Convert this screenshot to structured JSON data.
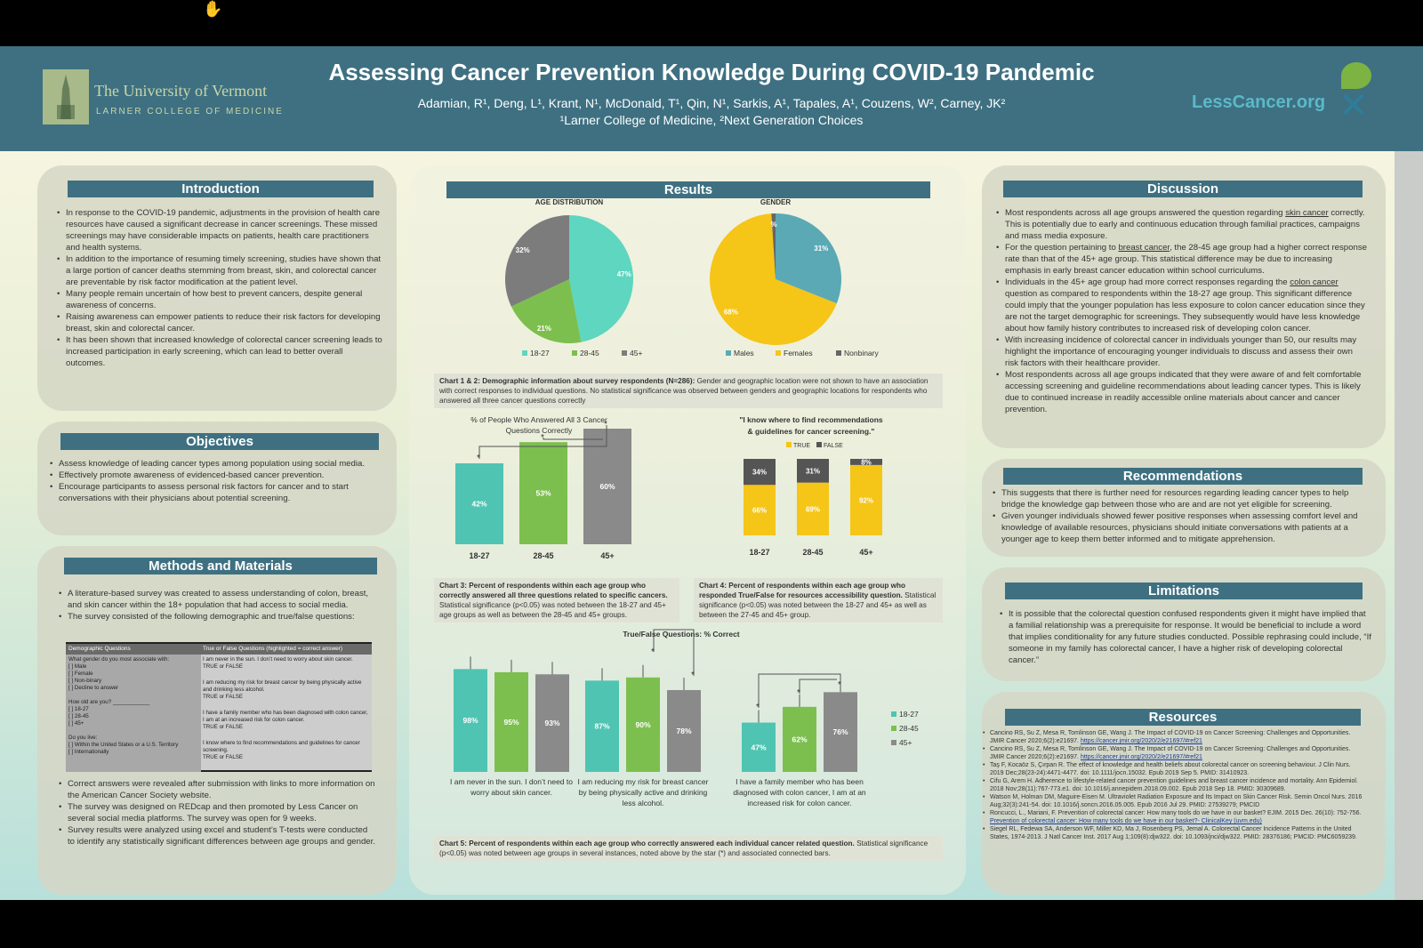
{
  "title": "Assessing Cancer Prevention Knowledge During COVID-19 Pandemic",
  "authors": "Adamian, R¹, Deng, L¹, Krant, N¹, McDonald, T¹, Qin, N¹, Sarkis, A¹, Tapales, A¹, Couzens, W², Carney, JK²",
  "affiliations": "¹Larner College of Medicine, ²Next Generation Choices",
  "uvm": {
    "line1": "The University of Vermont",
    "line2": "LARNER COLLEGE OF MEDICINE"
  },
  "lesscancer": "LessCancer.org",
  "introduction": {
    "heading": "Introduction",
    "items": [
      "In response to the COVID-19 pandemic, adjustments in the provision of health care resources have caused a significant decrease in cancer screenings. These missed screenings may have considerable impacts on patients, health care practitioners and health systems.",
      "In addition to the importance of resuming timely screening, studies have shown that a large portion of cancer deaths stemming from breast, skin, and colorectal cancer are preventable by risk factor modification at the patient level.",
      "Many people remain uncertain of how best to prevent cancers, despite general awareness of concerns.",
      "Raising awareness can empower patients to reduce their risk factors for developing breast, skin and colorectal cancer.",
      "It has been shown that increased knowledge of colorectal cancer screening leads to increased participation in early screening, which can lead to better overall outcomes."
    ]
  },
  "objectives": {
    "heading": "Objectives",
    "items": [
      "Assess knowledge of leading cancer types among population using social media.",
      "Effectively promote awareness of evidenced-based cancer prevention.",
      "Encourage participants to assess personal risk factors for cancer and to start conversations with their physicians about potential screening."
    ]
  },
  "methods": {
    "heading": "Methods and Materials",
    "items_top": [
      "A literature-based survey was created to assess understanding of colon, breast, and skin cancer within the 18+ population that had access to social media.",
      "The survey consisted of the following demographic and true/false questions:"
    ],
    "items_bottom": [
      "Correct answers were revealed after submission with links to more information on the American Cancer Society website.",
      "The survey was designed on REDcap and then promoted by Less Cancer on several social media platforms. The survey was open for 9 weeks.",
      "Survey results were analyzed using excel and student’s T-tests were conducted to identify any statistically significant differences between age groups and gender."
    ],
    "table": {
      "h1": "Demographic Questions",
      "h2": "True or False Questions (highlighted = correct answer)",
      "c1": "What gender do you most associate with:\n  [ ] Male\n  [ ] Female\n  [ ] Non-binary\n  [ ] Decline to answer\n\nHow old are you? ____________\n  [ ] 18-27\n  [ ] 28-45\n  [ ] 45+\n\nDo you live:\n  [ ] Within the United States or a U.S. Territory\n  [ ] Internationally",
      "q1": "I am never in the sun. I don’t need to worry about skin cancer.\nTRUE or FALSE",
      "q2": "I am reducing my risk for breast cancer by being physically active and drinking less alcohol.\nTRUE or FALSE",
      "q3": "I have a family member who has been diagnosed with colon cancer, I am at an increased risk for colon cancer.\nTRUE or FALSE",
      "q4": "I know where to find recommendations and guidelines for cancer screening.\nTRUE or FALSE"
    }
  },
  "results": {
    "heading": "Results",
    "caption12": {
      "bold": "Chart 1 & 2: Demographic information about survey respondents (N=286):",
      "text": " Gender and geographic location were not shown to have an association with correct responses to individual questions. No statistical significance was observed between genders and geographic locations for respondents who answered all three cancer questions correctly"
    },
    "caption3": {
      "bold": "Chart 3: Percent of respondents within each age group who correctly answered all three questions related to specific cancers.",
      "text": " Statistical significance (p<0.05) was noted between the 18-27 and 45+ age groups as well as between the 28-45 and 45+ groups."
    },
    "caption4": {
      "bold": "Chart 4: Percent of respondents within each age group who responded True/False for resources accessibility question.",
      "text": " Statistical significance (p<0.05) was noted between the 18-27 and 45+ as well as between the 27-45 and 45+ group."
    },
    "caption5": {
      "bold": "Chart 5: Percent of respondents within each age group who correctly answered each individual cancer related question.",
      "text": " Statistical significance (p<0.05) was noted between age groups in several instances, noted above by the star (*) and associated connected bars."
    }
  },
  "discussion": {
    "heading": "Discussion",
    "items": [
      [
        "Most respondents across all age groups answered the question regarding ",
        "skin cancer",
        " correctly. This is potentially due to early and continuous education through familial practices, campaigns and mass media exposure."
      ],
      [
        "For the question pertaining to ",
        "breast cancer",
        ", the 28-45 age group had a higher correct response rate than that of the 45+ age group. This statistical difference may be due to increasing emphasis in early breast cancer education within school curriculums."
      ],
      [
        "Individuals in the 45+ age group had more correct responses regarding the ",
        "colon cancer",
        " question as compared to respondents within the 18-27 age group. This significant difference could imply that the younger population has less exposure to colon cancer education since they are not the target demographic for screenings. They subsequently would have less knowledge about how family history contributes to increased risk of developing colon cancer."
      ],
      [
        "With increasing incidence of colorectal cancer in individuals younger than 50, our results may highlight the importance of encouraging younger individuals to discuss and assess their own risk factors with their healthcare provider.",
        "",
        ""
      ],
      [
        "Most respondents across all age groups indicated that they were aware of and felt comfortable accessing screening and guideline recommendations about leading cancer types. This is likely due to continued increase in readily accessible online materials about cancer and cancer prevention.",
        "",
        ""
      ]
    ]
  },
  "recommendations": {
    "heading": "Recommendations",
    "items": [
      "This suggests that there is further need for resources regarding leading cancer types to help bridge the knowledge gap between those who are and are not yet eligible for screening.",
      "Given younger individuals showed fewer positive responses when assessing comfort level and knowledge of available resources, physicians should initiate conversations with patients at a younger age to keep them better informed and to mitigate apprehension."
    ]
  },
  "limitations": {
    "heading": "Limitations",
    "items": [
      "It is possible that the colorectal question confused respondents given it might have implied that a familial relationship was a prerequisite for response. It would be beneficial to include a word that implies conditionality for any future studies conducted. Possible rephrasing could include, “If someone in my family has colorectal cancer, I have a higher risk of developing colorectal cancer.”"
    ]
  },
  "resources": {
    "heading": "Resources",
    "items": [
      [
        "Cancino RS, Su Z, Mesa R, Tomlinson GE, Wang J. The Impact of COVID-19 on Cancer Screening: Challenges and Opportunities. JMIR Cancer 2020;6(2):e21697. ",
        "https://cancer.jmir.org/2020/2/e21697/#ref21"
      ],
      [
        "Cancino RS, Su Z, Mesa R, Tomlinson GE, Wang J. The Impact of COVID-19 on Cancer Screening: Challenges and Opportunities. JMIR Cancer 2020;6(2):e21697. ",
        "https://cancer.jmir.org/2020/2/e21697/#ref21"
      ],
      [
        "Taş F, Kocaöz S, Çırpan R. The effect of knowledge and health beliefs about colorectal cancer on screening behaviour. J Clin Nurs. 2019 Dec;28(23-24):4471-4477. doi: 10.1111/jocn.15032. Epub 2019 Sep 5. PMID: 31410923.",
        ""
      ],
      [
        "Cifu G, Arem H. Adherence to lifestyle-related cancer prevention guidelines and breast cancer incidence and mortality. Ann Epidemiol. 2018 Nov;28(11):767-773.e1. doi: 10.1016/j.annepidem.2018.09.002. Epub 2018 Sep 18. PMID: 30309689.",
        ""
      ],
      [
        "Watson M, Holman DM, Maguire-Eisen M. Ultraviolet Radiation Exposure and Its Impact on Skin Cancer Risk. Semin Oncol Nurs. 2016 Aug;32(3):241-54. doi: 10.1016/j.soncn.2016.05.005. Epub 2016 Jul 29. PMID: 27539279; PMCID",
        ""
      ],
      [
        "Roncucci, L., Mariani, F. Prevention of colorectal cancer: How many tools do we have in our basket? EJIM. 2015 Dec. 26(10): 752-756. ",
        "Prevention of colorectal cancer: How many tools do we have in our basket?- ClinicalKey (uvm.edu)"
      ],
      [
        "Siegel RL, Fedewa SA, Anderson WF, Miller KD, Ma J, Rosenberg PS, Jemal A. Colorectal Cancer Incidence Patterns in the United States, 1974-2013. J Natl Cancer Inst. 2017 Aug 1;109(8):djw322. doi: 10.1093/jnci/djw322. PMID: 28376186; PMCID: PMC6059239.",
        ""
      ]
    ]
  },
  "chart_data": [
    {
      "type": "pie",
      "title": "AGE DISTRIBUTION",
      "labels": [
        "18-27",
        "28-45",
        "45+"
      ],
      "values": [
        47,
        21,
        32
      ],
      "colors": [
        "#5ed6c0",
        "#7cbf4e",
        "#7c7c7c"
      ]
    },
    {
      "type": "pie",
      "title": "GENDER",
      "labels": [
        "Males",
        "Females",
        "Nonbinary"
      ],
      "values": [
        31,
        68,
        1
      ],
      "value_labels": [
        "31%",
        "68%",
        "%"
      ],
      "colors": [
        "#5aa9b5",
        "#f5c518",
        "#666666"
      ]
    },
    {
      "type": "bar",
      "title": "% of People Who Answered All 3 Cancer Questions Correctly",
      "categories": [
        "18-27",
        "28-45",
        "45+"
      ],
      "values": [
        42,
        53,
        60
      ],
      "colors": [
        "#4fc4b2",
        "#7cbf4e",
        "#8a8a8a"
      ],
      "ylim": [
        0,
        100
      ]
    },
    {
      "type": "bar",
      "title": "\"I know where to find recommendations & guidelines for cancer screening.\"",
      "categories": [
        "18-27",
        "28-45",
        "45+"
      ],
      "series": [
        {
          "name": "TRUE",
          "values": [
            66,
            69,
            92
          ],
          "labels": [
            "66%",
            "69%",
            "92%"
          ]
        },
        {
          "name": "FALSE",
          "values": [
            34,
            31,
            8
          ],
          "labels": [
            "34%",
            "31%",
            "8%"
          ]
        }
      ],
      "colors": [
        "#f5c518",
        "#555555"
      ],
      "ylim": [
        0,
        100
      ]
    },
    {
      "type": "bar",
      "title": "True/False Questions: % Correct",
      "categories": [
        "I am never in the sun. I don’t need to worry about skin cancer.",
        "I am reducing my risk for breast cancer by being physically active and drinking less alcohol.",
        "I have a family member who has been diagnosed with colon cancer, I am at an increased risk for colon cancer."
      ],
      "series": [
        {
          "name": "18-27",
          "values": [
            98,
            87,
            47
          ]
        },
        {
          "name": "28-45",
          "values": [
            95,
            90,
            62
          ]
        },
        {
          "name": "45+",
          "values": [
            93,
            78,
            76
          ]
        }
      ],
      "colors": [
        "#4fc4b2",
        "#7cbf4e",
        "#8a8a8a"
      ],
      "ylim": [
        0,
        100
      ]
    }
  ]
}
